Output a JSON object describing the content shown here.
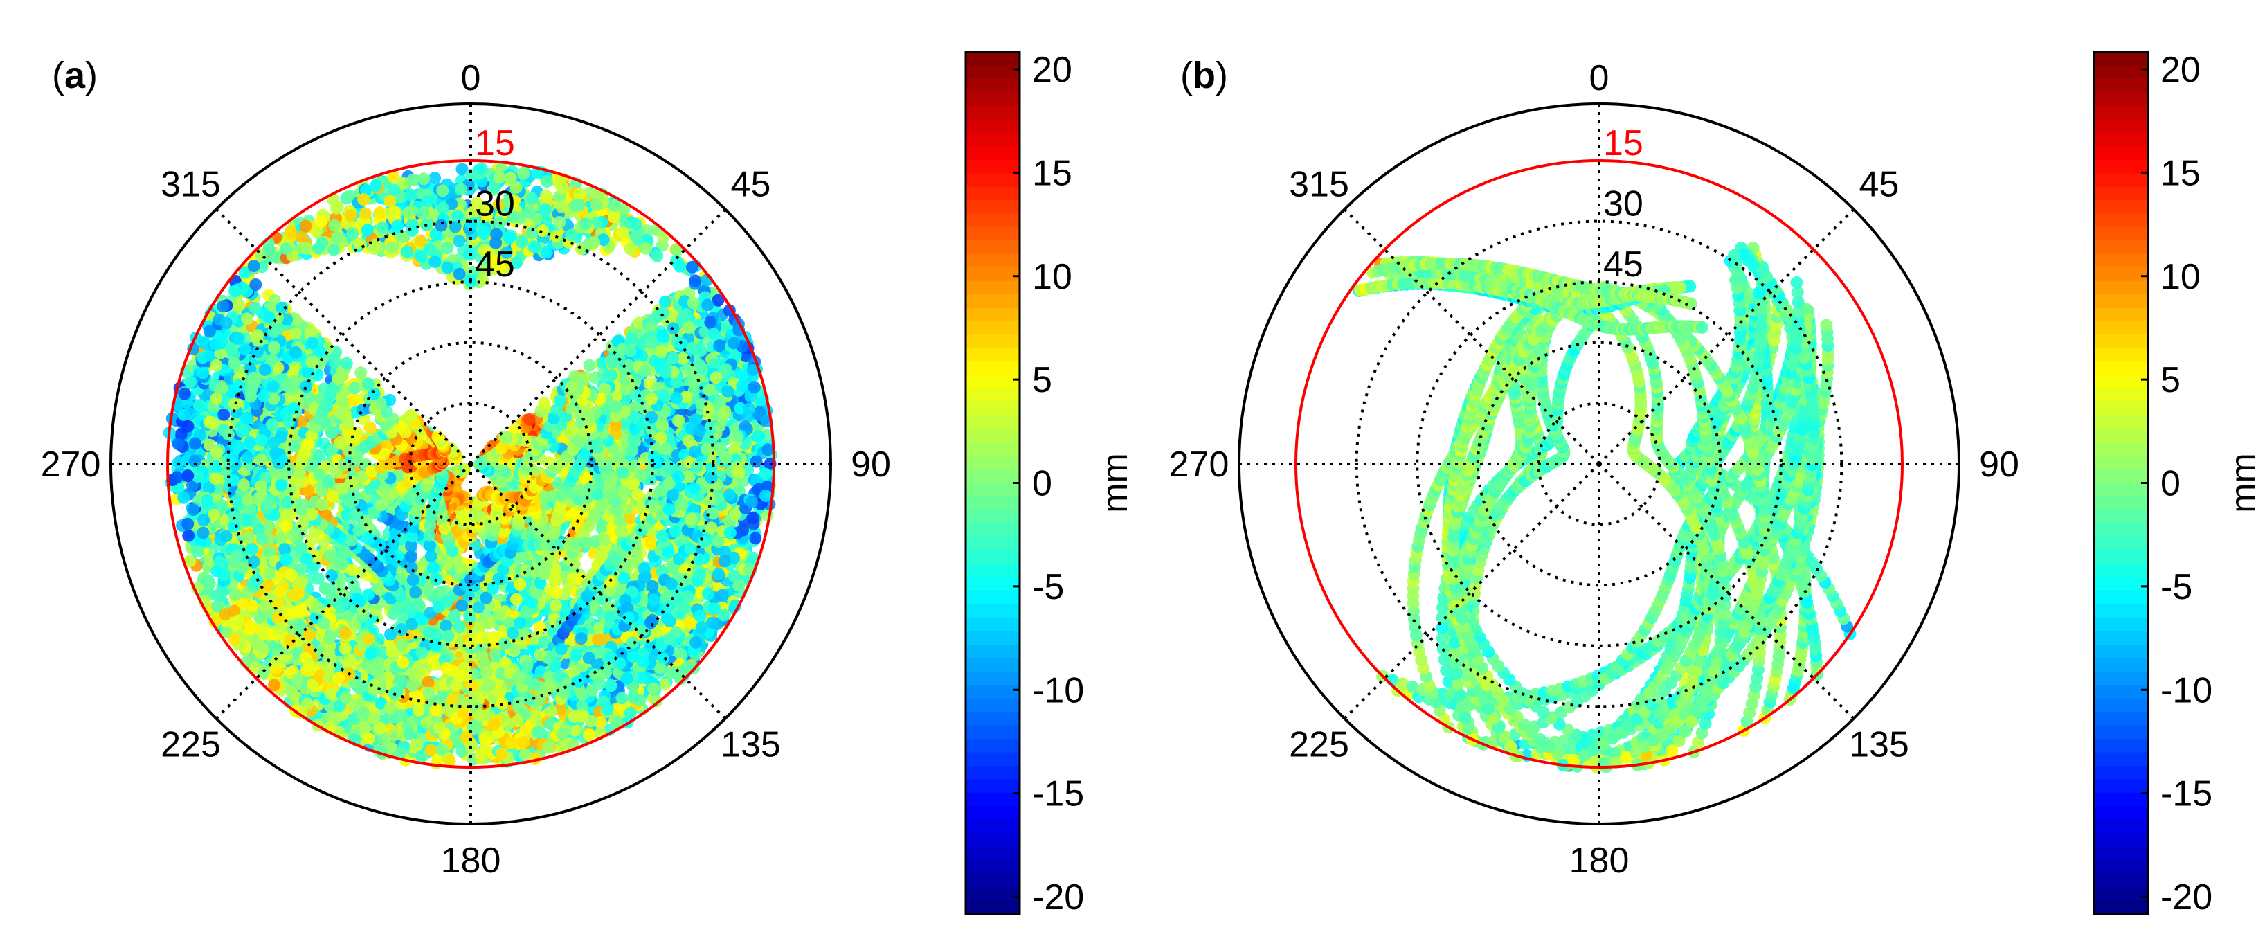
{
  "figure": {
    "panel_a_label": "a",
    "panel_b_label": "b"
  },
  "colors": {
    "cutoff_circle": "#ff0000",
    "outer_circle": "#000000",
    "grid": "#000000",
    "cutoff_label": "#ff0000"
  },
  "colormap": "jet",
  "chart_data": [
    {
      "type": "scatter",
      "subtype": "polar skyplot (azimuth vs elevation) colored by residual",
      "panel": "a",
      "azimuth_ticks": [
        "0",
        "45",
        "90",
        "135",
        "180",
        "225",
        "270",
        "315"
      ],
      "elevation_ring_labels": [
        "15",
        "30",
        "45"
      ],
      "cutoff_elevation": 15,
      "elevation_rings_deg": [
        15,
        30,
        45,
        60,
        75
      ],
      "colorbar": {
        "label": "mm",
        "ticks": [
          "20",
          "15",
          "10",
          "5",
          "0",
          "-5",
          "-10",
          "-15",
          "-20"
        ],
        "range": [
          -20,
          20
        ]
      },
      "coverage": "dense coverage of elevation 15-90 deg for azimuths ~315-360-45 (north gap above ~48 deg elevation boundary arc); values mostly between -5 and +8 mm, blue (~-12) near NW and NE edges, orange/red (~+10) near zenith center and SW edge",
      "tracks": [
        {
          "az": [
            230,
            250,
            270,
            290,
            310,
            322
          ],
          "el": [
            15,
            22,
            30,
            33,
            30,
            22
          ],
          "value": 3
        },
        {
          "az": [
            150,
            130,
            110,
            90,
            70,
            50
          ],
          "el": [
            15,
            22,
            28,
            32,
            30,
            24
          ],
          "value": 1
        },
        {
          "az": [
            180,
            200,
            225,
            250,
            275,
            300
          ],
          "el": [
            40,
            45,
            48,
            46,
            42,
            35
          ],
          "value": 2
        }
      ],
      "value_summary": {
        "min": -15,
        "max": 12,
        "typical": [
          -5,
          8
        ]
      }
    },
    {
      "type": "scatter",
      "subtype": "polar skyplot (azimuth vs elevation) colored by residual",
      "panel": "b",
      "azimuth_ticks": [
        "0",
        "45",
        "90",
        "135",
        "180",
        "225",
        "270",
        "315"
      ],
      "elevation_ring_labels": [
        "15",
        "30",
        "45"
      ],
      "cutoff_elevation": 15,
      "elevation_rings_deg": [
        15,
        30,
        45,
        60,
        75
      ],
      "colorbar": {
        "label": "mm",
        "ticks": [
          "20",
          "15",
          "10",
          "5",
          "0",
          "-5",
          "-10",
          "-15",
          "-20"
        ],
        "range": [
          -20,
          20
        ]
      },
      "coverage": "sparse individual satellite tracks crossing the sky; most tracks converge near azimuth ~45 deg / elevation ~20-30 deg and across the north arc near elevation ~48 deg; values mostly -5 to +3 mm, a few orange points",
      "value_summary": {
        "min": -12,
        "max": 10,
        "typical": [
          -5,
          3
        ]
      }
    }
  ]
}
